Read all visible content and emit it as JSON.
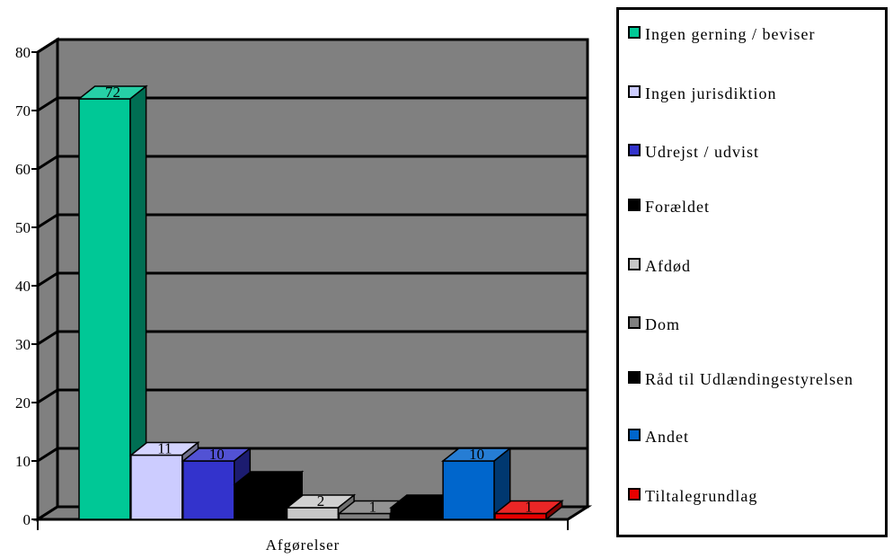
{
  "chart_data": {
    "type": "bar",
    "xlabel": "Afgørelser",
    "ylabel": "",
    "ylim": [
      0,
      80
    ],
    "yticks": [
      0,
      10,
      20,
      30,
      40,
      50,
      60,
      70,
      80
    ],
    "grid": true,
    "legend_position": "right",
    "series": [
      {
        "name": "Ingen gerning / beviser",
        "value": 72,
        "color": "#00c896"
      },
      {
        "name": "Ingen jurisdiktion",
        "value": 11,
        "color": "#ccccff"
      },
      {
        "name": "Udrejst / udvist",
        "value": 10,
        "color": "#3333cc"
      },
      {
        "name": "Forældet",
        "value": 6,
        "color": "#000000"
      },
      {
        "name": "Afdød",
        "value": 2,
        "color": "#c8c8c8"
      },
      {
        "name": "Dom",
        "value": 1,
        "color": "#808080"
      },
      {
        "name": "Råd til Udlændingestyrelsen",
        "value": 2,
        "color": "#000000"
      },
      {
        "name": "Andet",
        "value": 10,
        "color": "#0066cc"
      },
      {
        "name": "Tiltalegrundlag",
        "value": 1,
        "color": "#e60000"
      }
    ],
    "plot_background": "#808080"
  }
}
